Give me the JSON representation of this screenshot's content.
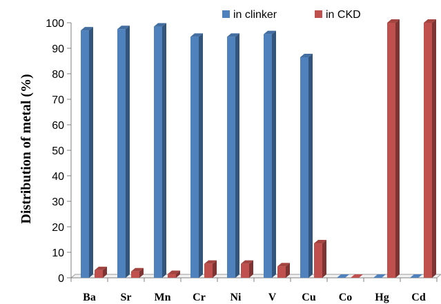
{
  "chart_data": {
    "type": "bar",
    "categories": [
      "Ba",
      "Sr",
      "Mn",
      "Cr",
      "Ni",
      "V",
      "Cu",
      "Co",
      "Hg",
      "Cd"
    ],
    "series": [
      {
        "name": "in clinker",
        "color": "#4F81BD",
        "values": [
          97,
          97.5,
          98.5,
          94.5,
          94.5,
          95.5,
          86.5,
          0,
          0,
          0
        ]
      },
      {
        "name": "in CKD",
        "color": "#C0504D",
        "values": [
          3,
          2.5,
          1.5,
          5.5,
          5.5,
          4.5,
          13.5,
          0,
          100,
          100
        ]
      }
    ],
    "ylabel": "Distribution  of  metal  (%)",
    "ylim": [
      0,
      100
    ],
    "yticks": [
      0,
      10,
      20,
      30,
      40,
      50,
      60,
      70,
      80,
      90,
      100
    ],
    "legend": "top-right",
    "grid": false
  }
}
